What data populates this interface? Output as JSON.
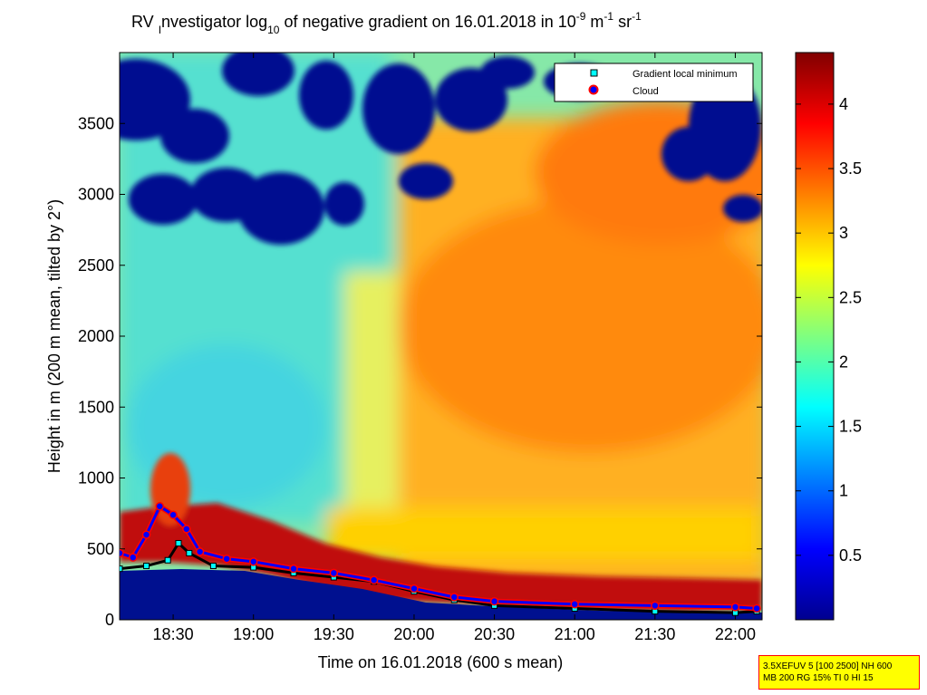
{
  "title": {
    "prefix": "RV ",
    "sub_i": "I",
    "after_i": "nvestigator log",
    "sub_10": "10",
    "middle": " of negative gradient on 16.01.2018 in 10",
    "sup_9": "-9",
    "unit_m": " m",
    "sup_1a": "-1",
    "unit_sr": " sr",
    "sup_1b": "-1"
  },
  "axes": {
    "xlabel": "Time on 16.01.2018 (600 s mean)",
    "ylabel": "Height in m (200 m mean, tilted by 2°)"
  },
  "legend": {
    "items": [
      "Gradient local minimum",
      "Cloud"
    ]
  },
  "info_box": {
    "line1": "3.5XEFUV 5 [100 2500] NH 600",
    "line2": "MB 200 RG 15% TI 0 HI 15"
  },
  "chart_data": {
    "type": "heatmap",
    "x": {
      "unit": "time",
      "range": [
        "18:10",
        "22:10"
      ],
      "ticks": [
        "18:30",
        "19:00",
        "19:30",
        "20:00",
        "20:30",
        "21:00",
        "21:30",
        "22:00"
      ]
    },
    "y": {
      "unit": "m",
      "range": [
        0,
        4000
      ],
      "ticks": [
        0,
        500,
        1000,
        1500,
        2000,
        2500,
        3000,
        3500
      ]
    },
    "colorbar": {
      "range": [
        0,
        4.4
      ],
      "ticks": [
        "0.5",
        "1",
        "1.5",
        "2",
        "2.5",
        "3",
        "3.5",
        "4"
      ],
      "colormap": "jet"
    },
    "legend_placement": "top-right",
    "colors": {
      "gradient_min_fill": "#00ffff",
      "cloud_fill": "#0000ff",
      "cloud_edge": "#ff0000",
      "info_box_fill": "#ffff00",
      "info_box_edge": "#ff0000"
    },
    "gradient_local_minimum": [
      {
        "t": "18:10",
        "h": 360
      },
      {
        "t": "18:20",
        "h": 380
      },
      {
        "t": "18:28",
        "h": 420
      },
      {
        "t": "18:32",
        "h": 540
      },
      {
        "t": "18:36",
        "h": 470
      },
      {
        "t": "18:45",
        "h": 380
      },
      {
        "t": "19:00",
        "h": 370
      },
      {
        "t": "19:15",
        "h": 330
      },
      {
        "t": "19:30",
        "h": 300
      },
      {
        "t": "19:45",
        "h": 270
      },
      {
        "t": "20:00",
        "h": 200
      },
      {
        "t": "20:15",
        "h": 140
      },
      {
        "t": "20:30",
        "h": 100
      },
      {
        "t": "21:00",
        "h": 80
      },
      {
        "t": "21:30",
        "h": 60
      },
      {
        "t": "22:00",
        "h": 50
      },
      {
        "t": "22:08",
        "h": 60
      }
    ],
    "cloud_base": [
      {
        "t": "18:10",
        "h": 470
      },
      {
        "t": "18:15",
        "h": 440
      },
      {
        "t": "18:20",
        "h": 600
      },
      {
        "t": "18:25",
        "h": 800
      },
      {
        "t": "18:30",
        "h": 740
      },
      {
        "t": "18:35",
        "h": 640
      },
      {
        "t": "18:40",
        "h": 480
      },
      {
        "t": "18:50",
        "h": 430
      },
      {
        "t": "19:00",
        "h": 410
      },
      {
        "t": "19:15",
        "h": 360
      },
      {
        "t": "19:30",
        "h": 330
      },
      {
        "t": "19:45",
        "h": 280
      },
      {
        "t": "20:00",
        "h": 220
      },
      {
        "t": "20:15",
        "h": 160
      },
      {
        "t": "20:30",
        "h": 130
      },
      {
        "t": "21:00",
        "h": 110
      },
      {
        "t": "21:30",
        "h": 100
      },
      {
        "t": "22:00",
        "h": 90
      },
      {
        "t": "22:08",
        "h": 80
      }
    ]
  }
}
